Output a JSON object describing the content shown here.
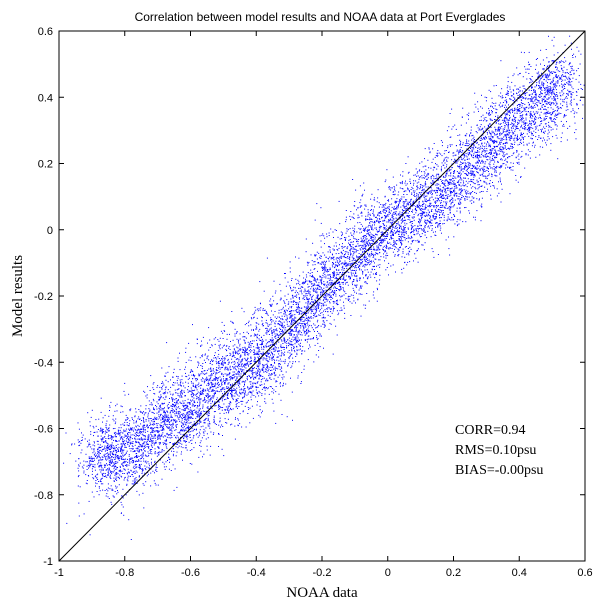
{
  "chart_data": {
    "type": "scatter",
    "title": "Correlation between model results and NOAA data at Port Everglades",
    "xlabel": "NOAA data",
    "ylabel": "Model results",
    "xlim": [
      -1,
      0.6
    ],
    "ylim": [
      -1,
      0.6
    ],
    "xticks": [
      "-1",
      "-0.8",
      "-0.6",
      "-0.4",
      "-0.2",
      "0",
      "0.2",
      "0.4",
      "0.6"
    ],
    "yticks": [
      "-1",
      "-0.8",
      "-0.6",
      "-0.4",
      "-0.2",
      "0",
      "0.2",
      "0.4",
      "0.6"
    ],
    "grid": false,
    "reference_line": {
      "x": [
        -1,
        0.6
      ],
      "y": [
        -1,
        0.6
      ]
    },
    "point_color": "#0000ff",
    "annotations": [
      "CORR=0.94",
      "RMS=0.10psu",
      "BIAS=-0.00psu"
    ],
    "series": [
      {
        "points": [
          [
            -0.9,
            -0.72
          ],
          [
            -0.85,
            -0.66
          ],
          [
            -0.8,
            -0.7
          ],
          [
            -0.75,
            -0.63
          ],
          [
            -0.7,
            -0.62
          ],
          [
            -0.65,
            -0.52
          ],
          [
            -0.6,
            -0.58
          ],
          [
            -0.55,
            -0.45
          ],
          [
            -0.5,
            -0.5
          ],
          [
            -0.45,
            -0.38
          ],
          [
            -0.4,
            -0.44
          ],
          [
            -0.35,
            -0.33
          ],
          [
            -0.3,
            -0.3
          ],
          [
            -0.25,
            -0.24
          ],
          [
            -0.2,
            -0.18
          ],
          [
            -0.15,
            -0.12
          ],
          [
            -0.1,
            -0.09
          ],
          [
            -0.05,
            -0.02
          ],
          [
            0,
            0.0
          ],
          [
            0.05,
            0.04
          ],
          [
            0.1,
            0.06
          ],
          [
            0.15,
            0.12
          ],
          [
            0.2,
            0.14
          ],
          [
            0.25,
            0.2
          ],
          [
            0.3,
            0.24
          ],
          [
            0.35,
            0.3
          ],
          [
            0.4,
            0.33
          ],
          [
            0.45,
            0.38
          ],
          [
            0.5,
            0.42
          ],
          [
            0.55,
            0.45
          ]
        ]
      }
    ]
  }
}
